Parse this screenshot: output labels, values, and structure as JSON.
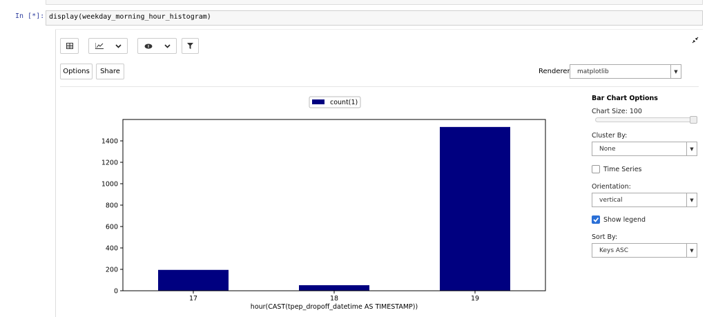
{
  "ui": {
    "prompt": "In [*]:",
    "code": "display(weekday_morning_hour_histogram)",
    "buttons": [
      "Options",
      "Share"
    ],
    "renderer_label": "Renderer:",
    "renderer": "matplotlib",
    "panel": {
      "title": "Bar Chart Options",
      "chart_size": "Chart Size: 100",
      "cluster_label": "Cluster By:",
      "cluster": "None",
      "time_series_label": "Time Series",
      "time_series": false,
      "orientation_label": "Orientation:",
      "orientation": "vertical",
      "show_legend_label": "Show legend",
      "show_legend": true,
      "sort_label": "Sort By:",
      "sort": "Keys ASC"
    }
  },
  "chart_data": {
    "type": "bar",
    "categories": [
      "17",
      "18",
      "19"
    ],
    "series": [
      {
        "name": "count(1)",
        "color": "#000080",
        "values": [
          195,
          52,
          1530
        ]
      }
    ],
    "xlabel": "hour(CAST(tpep_dropoff_datetime AS TIMESTAMP))",
    "ylim": [
      0,
      1600
    ],
    "yticks": [
      0,
      200,
      400,
      600,
      800,
      1000,
      1200,
      1400
    ]
  }
}
